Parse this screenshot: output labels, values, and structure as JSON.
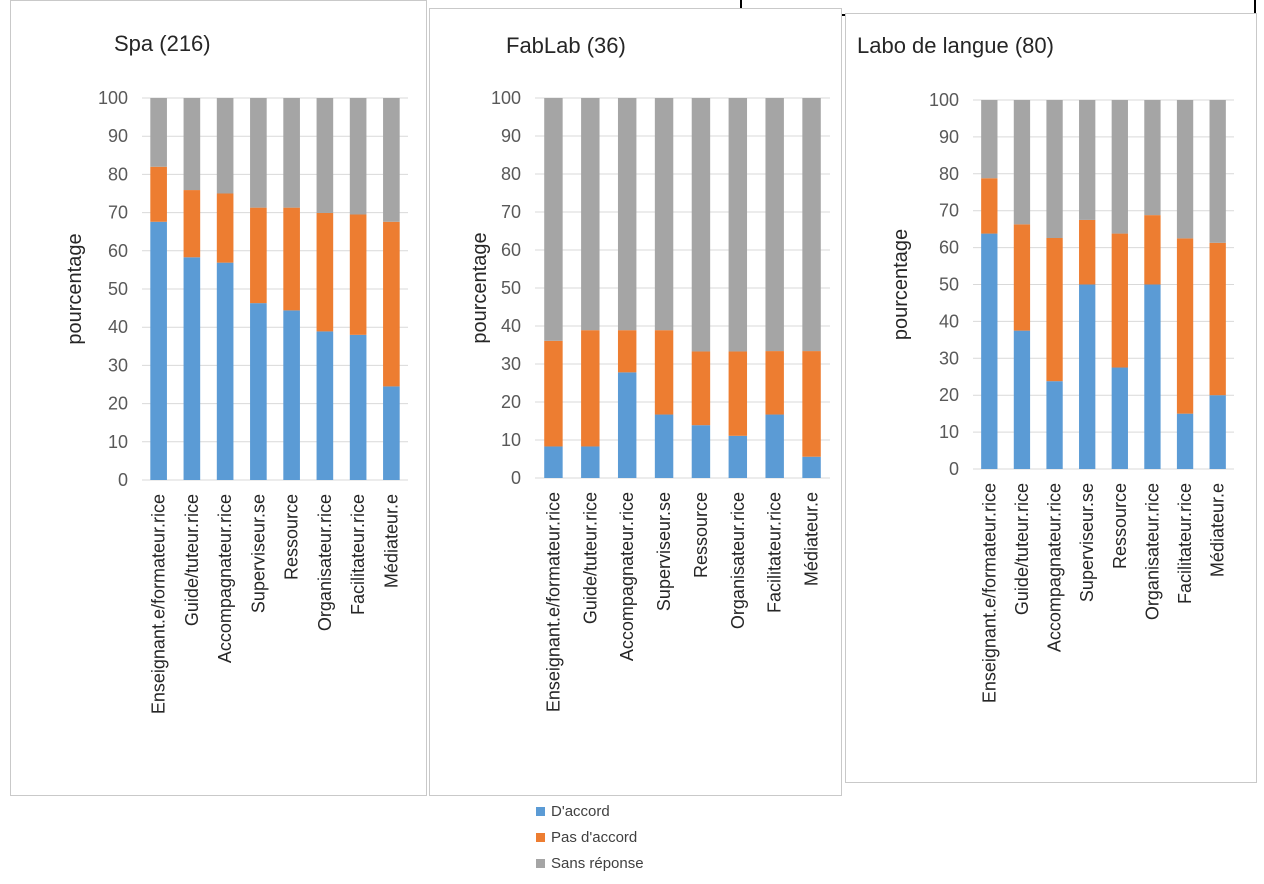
{
  "colors": {
    "agree": "#5b9bd5",
    "disagree": "#ed7d31",
    "none": "#a5a5a5",
    "grid": "#d9d9d9"
  },
  "legend": [
    {
      "key": "agree",
      "label": "D'accord"
    },
    {
      "key": "disagree",
      "label": "Pas d'accord"
    },
    {
      "key": "none",
      "label": "Sans réponse"
    }
  ],
  "chart_data": [
    {
      "type": "bar",
      "stacked": true,
      "title": "Spa (216)",
      "xlabel": "",
      "ylabel": "pourcentage",
      "ylim": [
        0,
        100
      ],
      "yticks": [
        0,
        10,
        20,
        30,
        40,
        50,
        60,
        70,
        80,
        90,
        100
      ],
      "grid": true,
      "legend_position": "bottom",
      "categories": [
        "Enseignant.e/formateur.rice",
        "Guide/tuteur.rice",
        "Accompagnateur.rice",
        "Superviseur.se",
        "Ressource",
        "Organisateur.rice",
        "Facilitateur.rice",
        "Médiateur.e"
      ],
      "series": [
        {
          "name": "D'accord",
          "values": [
            67.6,
            58.3,
            56.9,
            46.3,
            44.4,
            38.9,
            38.0,
            24.5
          ]
        },
        {
          "name": "Pas d'accord",
          "values": [
            14.4,
            17.6,
            18.1,
            25.0,
            26.9,
            31.0,
            31.5,
            43.1
          ]
        },
        {
          "name": "Sans réponse",
          "values": [
            18.0,
            24.1,
            25.0,
            28.7,
            28.7,
            30.1,
            30.5,
            32.4
          ]
        }
      ]
    },
    {
      "type": "bar",
      "stacked": true,
      "title": "FabLab (36)",
      "xlabel": "",
      "ylabel": "pourcentage",
      "ylim": [
        0,
        100
      ],
      "yticks": [
        0,
        10,
        20,
        30,
        40,
        50,
        60,
        70,
        80,
        90,
        100
      ],
      "grid": true,
      "legend_position": "bottom",
      "categories": [
        "Enseignant.e/formateur.rice",
        "Guide/tuteur.rice",
        "Accompagnateur.rice",
        "Superviseur.se",
        "Ressource",
        "Organisateur.rice",
        "Facilitateur.rice",
        "Médiateur.e"
      ],
      "series": [
        {
          "name": "D'accord",
          "values": [
            8.3,
            8.3,
            27.8,
            16.7,
            13.9,
            11.1,
            16.7,
            5.6
          ]
        },
        {
          "name": "Pas d'accord",
          "values": [
            27.8,
            30.6,
            11.1,
            22.2,
            19.4,
            22.2,
            16.7,
            27.8
          ]
        },
        {
          "name": "Sans réponse",
          "values": [
            63.9,
            61.1,
            61.1,
            61.1,
            66.7,
            66.7,
            66.6,
            66.6
          ]
        }
      ]
    },
    {
      "type": "bar",
      "stacked": true,
      "title": "Labo de langue (80)",
      "xlabel": "",
      "ylabel": "pourcentage",
      "ylim": [
        0,
        100
      ],
      "yticks": [
        0,
        10,
        20,
        30,
        40,
        50,
        60,
        70,
        80,
        90,
        100
      ],
      "grid": true,
      "legend_position": "bottom",
      "categories": [
        "Enseignant.e/formateur.rice",
        "Guide/tuteur.rice",
        "Accompagnateur.rice",
        "Superviseur.se",
        "Ressource",
        "Organisateur.rice",
        "Facilitateur.rice",
        "Médiateur.e"
      ],
      "series": [
        {
          "name": "D'accord",
          "values": [
            63.8,
            37.5,
            23.8,
            50.0,
            27.5,
            50.0,
            15.0,
            20.0
          ]
        },
        {
          "name": "Pas d'accord",
          "values": [
            15.0,
            28.8,
            38.8,
            17.5,
            36.3,
            18.8,
            47.5,
            41.3
          ]
        },
        {
          "name": "Sans réponse",
          "values": [
            21.2,
            33.7,
            37.4,
            32.5,
            36.2,
            31.2,
            37.5,
            38.7
          ]
        }
      ]
    }
  ]
}
